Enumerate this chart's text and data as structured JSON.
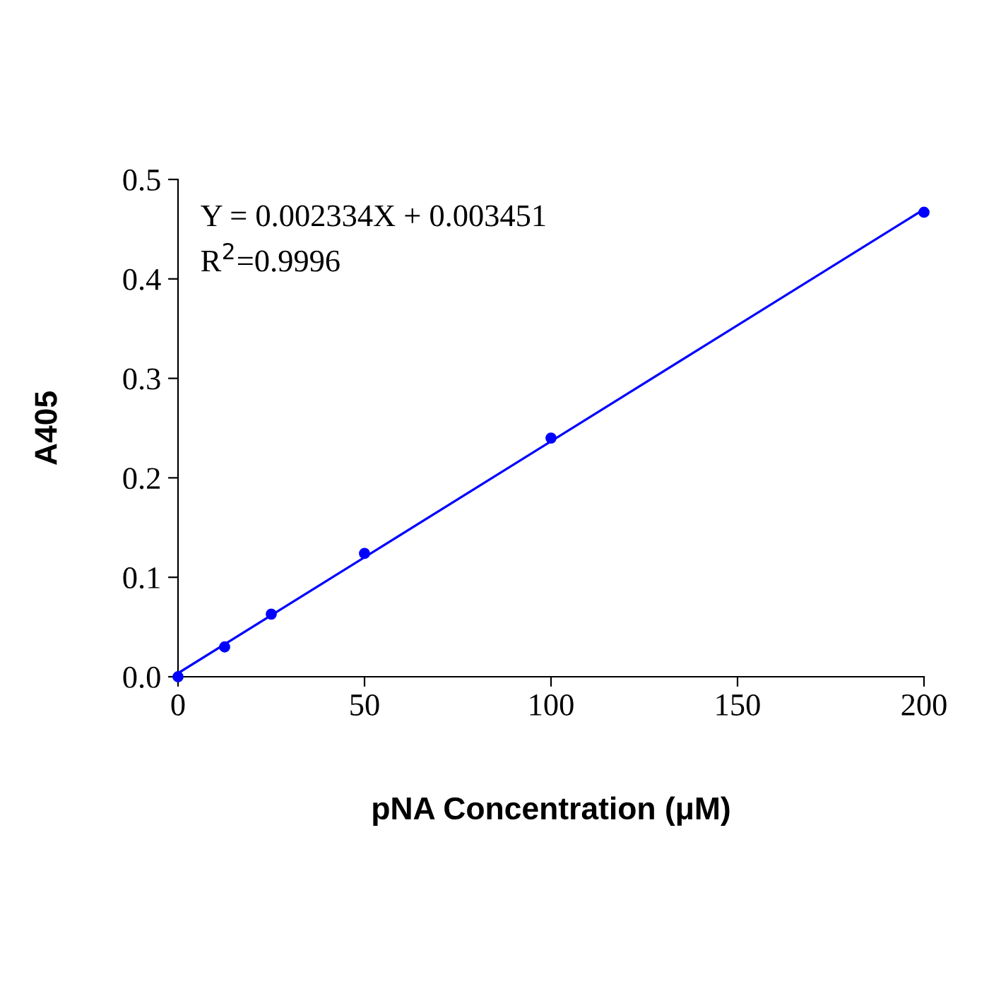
{
  "chart_data": {
    "type": "line",
    "xlabel": "pNA Concentration (μM)",
    "ylabel": "A405",
    "xlim": [
      0,
      200
    ],
    "ylim": [
      0,
      0.5
    ],
    "xticks": [
      0,
      50,
      100,
      150,
      200
    ],
    "yticks": [
      {
        "value": 0,
        "label": "0.0"
      },
      {
        "value": 0.1,
        "label": "0.1"
      },
      {
        "value": 0.2,
        "label": "0.2"
      },
      {
        "value": 0.3,
        "label": "0.3"
      },
      {
        "value": 0.4,
        "label": "0.4"
      },
      {
        "value": 0.5,
        "label": "0.5"
      }
    ],
    "grid": false,
    "series": [
      {
        "type": "scatter",
        "marker": "circle",
        "color": "#0000ff",
        "x": [
          0,
          12.5,
          25,
          50,
          100,
          200
        ],
        "values": [
          0.0,
          0.03,
          0.063,
          0.124,
          0.24,
          0.467
        ]
      },
      {
        "marker": "none",
        "color": "#0000ff",
        "x": [
          0,
          200
        ],
        "values": [
          0.0035,
          0.47
        ]
      }
    ],
    "annotations": [
      "Y = 0.002334X + 0.003451",
      "R$^{2}$=0.9996"
    ]
  }
}
